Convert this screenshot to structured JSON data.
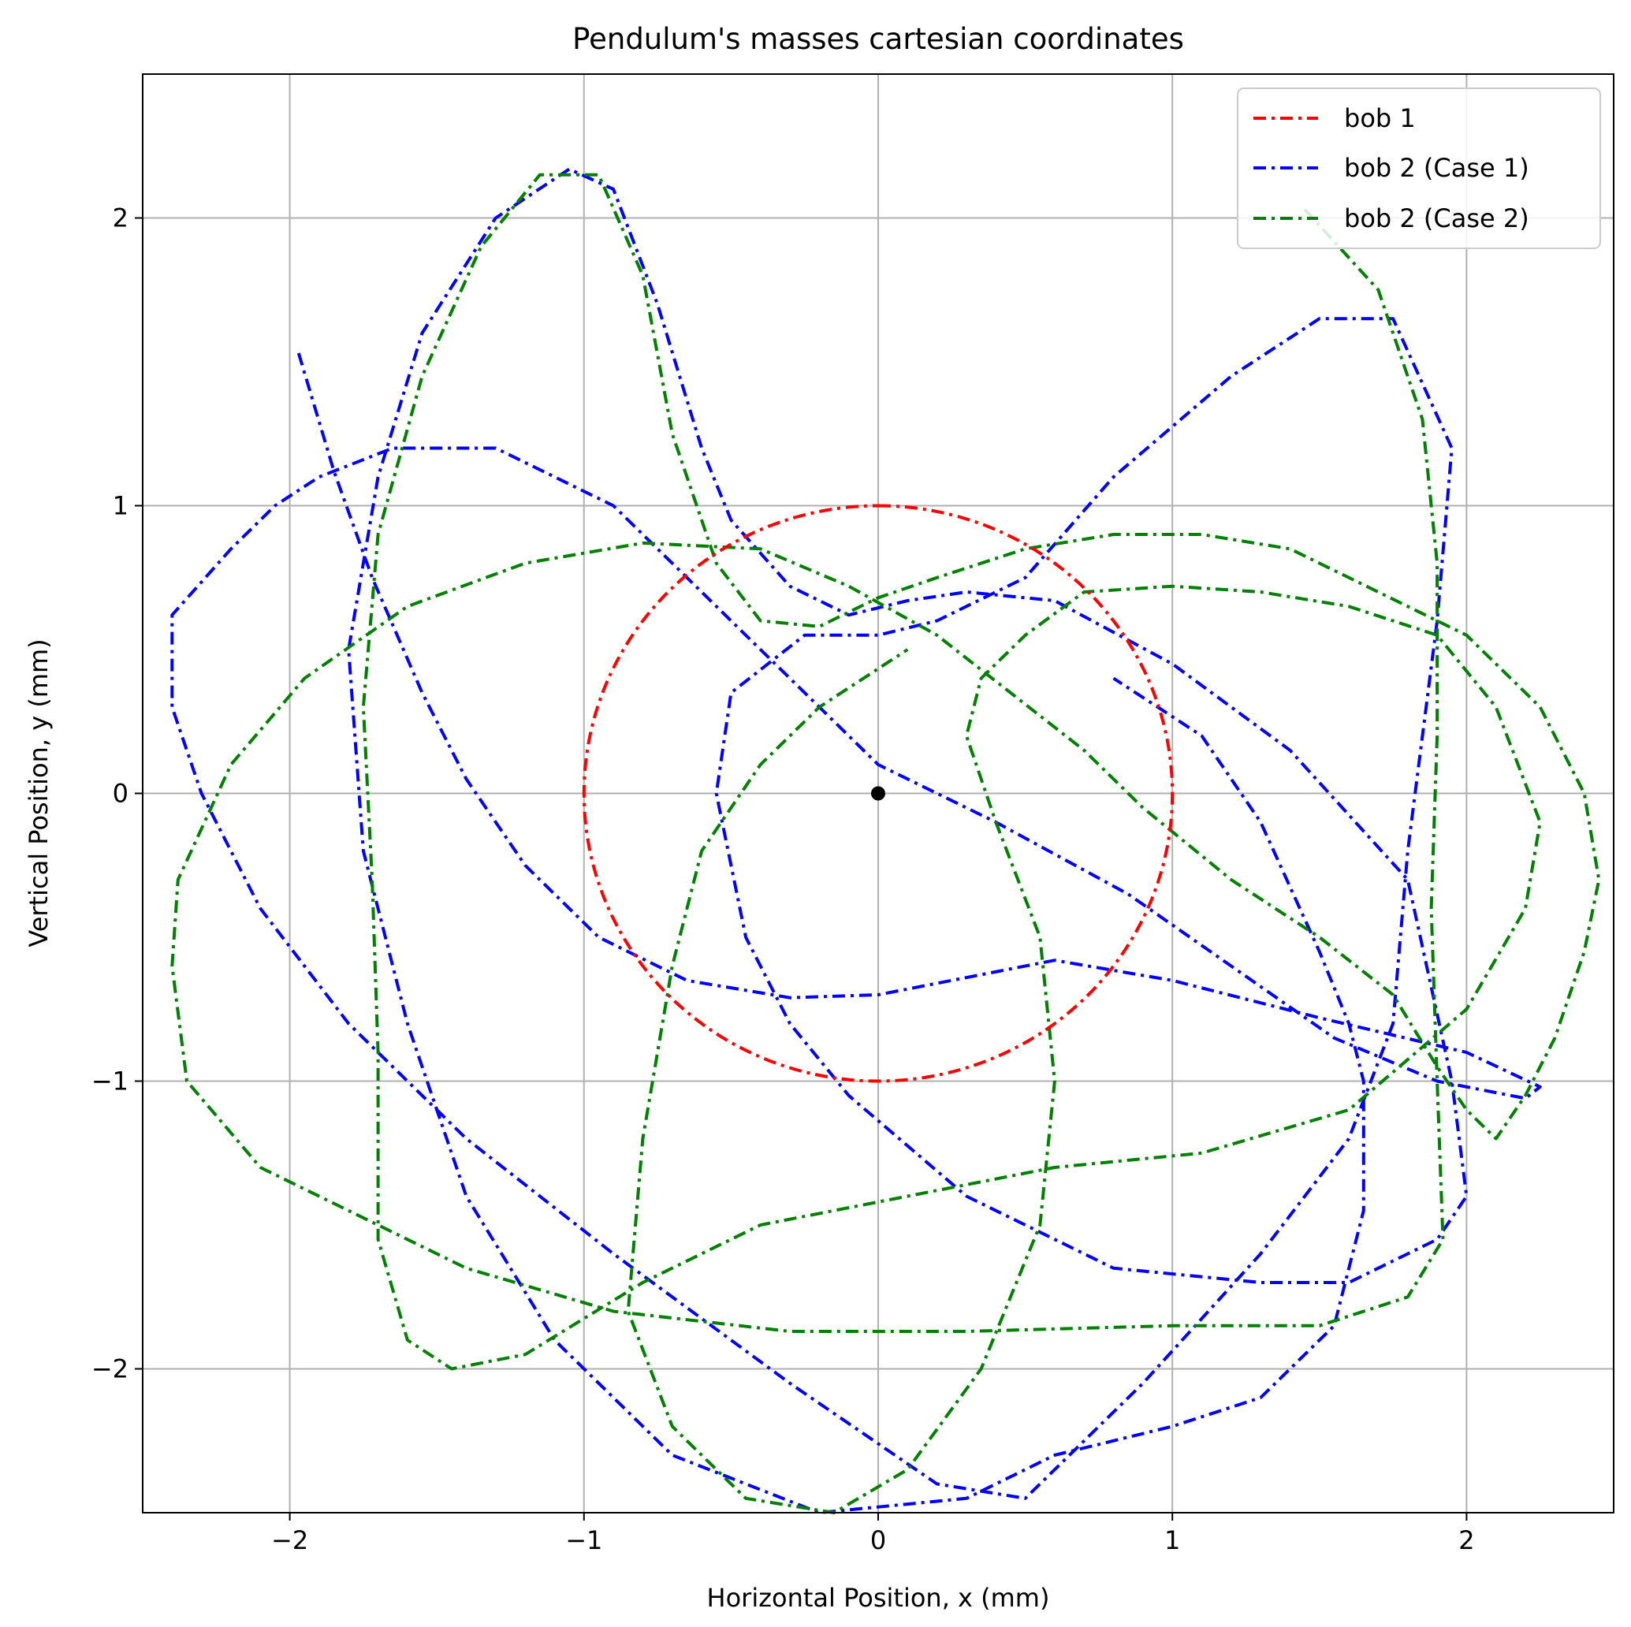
{
  "chart_data": {
    "type": "line",
    "title": "Pendulum's masses cartesian coordinates",
    "xlabel": "Horizontal Position, x (mm)",
    "ylabel": "Vertical Position, y (mm)",
    "xlim": [
      -2.5,
      2.5
    ],
    "ylim": [
      -2.5,
      2.5
    ],
    "xticks": [
      -2,
      -1,
      0,
      1,
      2
    ],
    "yticks": [
      -2,
      -1,
      0,
      1,
      2
    ],
    "xtick_labels": [
      "−2",
      "−1",
      "0",
      "1",
      "2"
    ],
    "ytick_labels": [
      "−2",
      "−1",
      "0",
      "1",
      "2"
    ],
    "grid": true,
    "legend_position": "top-right",
    "pivot": {
      "x": 0,
      "y": 0,
      "color": "#000000"
    },
    "series": [
      {
        "name": "bob 1",
        "color": "#ff0000",
        "linestyle": "dashdot",
        "shape": "circle",
        "center": [
          0,
          0
        ],
        "radius": 1
      },
      {
        "name": "bob 2 (Case 1)",
        "color": "#0000ff",
        "linestyle": "dashdot",
        "points": [
          [
            -1.97,
            1.53
          ],
          [
            -1.85,
            1.12
          ],
          [
            -1.72,
            0.75
          ],
          [
            -1.55,
            0.35
          ],
          [
            -1.4,
            0.05
          ],
          [
            -1.2,
            -0.25
          ],
          [
            -0.95,
            -0.5
          ],
          [
            -0.65,
            -0.65
          ],
          [
            -0.3,
            -0.71
          ],
          [
            0.0,
            -0.7
          ],
          [
            0.3,
            -0.64
          ],
          [
            0.6,
            -0.58
          ],
          [
            1.0,
            -0.65
          ],
          [
            1.5,
            -0.78
          ],
          [
            2.0,
            -0.9
          ],
          [
            2.25,
            -1.02
          ],
          [
            2.2,
            -1.06
          ],
          [
            1.9,
            -1.0
          ],
          [
            1.55,
            -0.85
          ],
          [
            1.2,
            -0.6
          ],
          [
            0.85,
            -0.35
          ],
          [
            0.4,
            -0.1
          ],
          [
            0.0,
            0.1
          ],
          [
            -0.4,
            0.5
          ],
          [
            -0.9,
            1.0
          ],
          [
            -1.3,
            1.2
          ],
          [
            -1.65,
            1.2
          ],
          [
            -1.9,
            1.1
          ],
          [
            -2.05,
            1.0
          ],
          [
            -2.2,
            0.85
          ],
          [
            -2.4,
            0.62
          ],
          [
            -2.4,
            0.3
          ],
          [
            -2.3,
            0.0
          ],
          [
            -2.1,
            -0.4
          ],
          [
            -1.8,
            -0.8
          ],
          [
            -1.4,
            -1.2
          ],
          [
            -0.9,
            -1.6
          ],
          [
            -0.3,
            -2.05
          ],
          [
            0.2,
            -2.4
          ],
          [
            0.5,
            -2.45
          ],
          [
            0.9,
            -2.05
          ],
          [
            1.3,
            -1.6
          ],
          [
            1.6,
            -1.2
          ],
          [
            1.75,
            -0.8
          ],
          [
            1.8,
            -0.2
          ],
          [
            1.9,
            0.6
          ],
          [
            1.95,
            1.2
          ],
          [
            1.75,
            1.65
          ],
          [
            1.5,
            1.65
          ],
          [
            1.2,
            1.45
          ],
          [
            0.8,
            1.1
          ],
          [
            0.5,
            0.75
          ],
          [
            0.2,
            0.6
          ],
          [
            0.0,
            0.55
          ],
          [
            -0.25,
            0.55
          ],
          [
            -0.5,
            0.35
          ],
          [
            -0.55,
            0.0
          ],
          [
            -0.45,
            -0.5
          ],
          [
            -0.3,
            -0.8
          ],
          [
            -0.1,
            -1.05
          ],
          [
            0.3,
            -1.4
          ],
          [
            0.8,
            -1.65
          ],
          [
            1.3,
            -1.7
          ],
          [
            1.6,
            -1.7
          ],
          [
            1.9,
            -1.55
          ],
          [
            2.0,
            -1.4
          ],
          [
            1.95,
            -1.0
          ],
          [
            1.8,
            -0.3
          ],
          [
            1.4,
            0.15
          ],
          [
            1.0,
            0.45
          ],
          [
            0.6,
            0.67
          ],
          [
            0.3,
            0.7
          ],
          [
            0.1,
            0.67
          ],
          [
            -0.1,
            0.62
          ],
          [
            -0.3,
            0.72
          ],
          [
            -0.5,
            0.95
          ],
          [
            -0.6,
            1.2
          ],
          [
            -0.75,
            1.7
          ],
          [
            -0.9,
            2.1
          ],
          [
            -1.05,
            2.17
          ],
          [
            -1.3,
            2.0
          ],
          [
            -1.55,
            1.6
          ],
          [
            -1.7,
            1.1
          ],
          [
            -1.8,
            0.5
          ],
          [
            -1.75,
            -0.2
          ],
          [
            -1.6,
            -0.8
          ],
          [
            -1.4,
            -1.4
          ],
          [
            -1.1,
            -1.9
          ],
          [
            -0.7,
            -2.3
          ],
          [
            -0.2,
            -2.5
          ],
          [
            0.3,
            -2.45
          ],
          [
            0.6,
            -2.3
          ],
          [
            1.0,
            -2.2
          ],
          [
            1.3,
            -2.1
          ],
          [
            1.55,
            -1.85
          ],
          [
            1.65,
            -1.45
          ],
          [
            1.65,
            -1.0
          ],
          [
            1.6,
            -0.8
          ],
          [
            1.5,
            -0.55
          ],
          [
            1.3,
            -0.1
          ],
          [
            1.1,
            0.2
          ],
          [
            0.8,
            0.4
          ]
        ]
      },
      {
        "name": "bob 2 (Case 2)",
        "color": "#008000",
        "linestyle": "dashdot",
        "points": [
          [
            1.45,
            2.03
          ],
          [
            1.7,
            1.75
          ],
          [
            1.85,
            1.3
          ],
          [
            1.9,
            0.8
          ],
          [
            1.9,
            0.2
          ],
          [
            1.88,
            -0.4
          ],
          [
            1.9,
            -1.0
          ],
          [
            1.92,
            -1.55
          ],
          [
            1.8,
            -1.75
          ],
          [
            1.5,
            -1.85
          ],
          [
            1.0,
            -1.85
          ],
          [
            0.3,
            -1.87
          ],
          [
            -0.3,
            -1.87
          ],
          [
            -0.9,
            -1.8
          ],
          [
            -1.4,
            -1.65
          ],
          [
            -1.8,
            -1.45
          ],
          [
            -2.1,
            -1.3
          ],
          [
            -2.35,
            -1.0
          ],
          [
            -2.4,
            -0.6
          ],
          [
            -2.38,
            -0.3
          ],
          [
            -2.2,
            0.1
          ],
          [
            -1.95,
            0.4
          ],
          [
            -1.6,
            0.65
          ],
          [
            -1.2,
            0.8
          ],
          [
            -0.8,
            0.87
          ],
          [
            -0.4,
            0.85
          ],
          [
            -0.1,
            0.72
          ],
          [
            0.2,
            0.55
          ],
          [
            0.45,
            0.35
          ],
          [
            0.7,
            0.15
          ],
          [
            0.9,
            -0.05
          ],
          [
            1.2,
            -0.3
          ],
          [
            1.5,
            -0.5
          ],
          [
            1.75,
            -0.7
          ],
          [
            1.9,
            -0.95
          ],
          [
            2.0,
            -1.1
          ],
          [
            2.1,
            -1.2
          ],
          [
            2.2,
            -1.05
          ],
          [
            2.3,
            -0.85
          ],
          [
            2.4,
            -0.55
          ],
          [
            2.45,
            -0.3
          ],
          [
            2.4,
            0.0
          ],
          [
            2.25,
            0.3
          ],
          [
            2.0,
            0.55
          ],
          [
            1.7,
            0.7
          ],
          [
            1.4,
            0.85
          ],
          [
            1.1,
            0.9
          ],
          [
            0.8,
            0.9
          ],
          [
            0.5,
            0.85
          ],
          [
            0.2,
            0.75
          ],
          [
            0.0,
            0.68
          ],
          [
            -0.2,
            0.58
          ],
          [
            -0.4,
            0.6
          ],
          [
            -0.55,
            0.8
          ],
          [
            -0.7,
            1.25
          ],
          [
            -0.8,
            1.8
          ],
          [
            -0.95,
            2.15
          ],
          [
            -1.15,
            2.15
          ],
          [
            -1.35,
            1.9
          ],
          [
            -1.55,
            1.45
          ],
          [
            -1.7,
            0.9
          ],
          [
            -1.75,
            0.3
          ],
          [
            -1.72,
            -0.3
          ],
          [
            -1.7,
            -0.9
          ],
          [
            -1.7,
            -1.55
          ],
          [
            -1.6,
            -1.9
          ],
          [
            -1.45,
            -2.0
          ],
          [
            -1.2,
            -1.95
          ],
          [
            -0.8,
            -1.7
          ],
          [
            -0.4,
            -1.5
          ],
          [
            0.1,
            -1.4
          ],
          [
            0.6,
            -1.3
          ],
          [
            1.1,
            -1.25
          ],
          [
            1.6,
            -1.1
          ],
          [
            2.0,
            -0.75
          ],
          [
            2.2,
            -0.4
          ],
          [
            2.25,
            -0.1
          ],
          [
            2.1,
            0.3
          ],
          [
            1.9,
            0.55
          ],
          [
            1.6,
            0.65
          ],
          [
            1.3,
            0.7
          ],
          [
            1.0,
            0.72
          ],
          [
            0.7,
            0.7
          ],
          [
            0.5,
            0.55
          ],
          [
            0.35,
            0.4
          ],
          [
            0.3,
            0.2
          ],
          [
            0.4,
            -0.1
          ],
          [
            0.55,
            -0.5
          ],
          [
            0.6,
            -1.0
          ],
          [
            0.55,
            -1.5
          ],
          [
            0.35,
            -2.0
          ],
          [
            0.1,
            -2.35
          ],
          [
            -0.15,
            -2.5
          ],
          [
            -0.45,
            -2.45
          ],
          [
            -0.7,
            -2.2
          ],
          [
            -0.85,
            -1.8
          ],
          [
            -0.8,
            -1.2
          ],
          [
            -0.7,
            -0.6
          ],
          [
            -0.6,
            -0.2
          ],
          [
            -0.4,
            0.1
          ],
          [
            -0.2,
            0.3
          ],
          [
            0.1,
            0.5
          ]
        ]
      }
    ]
  }
}
